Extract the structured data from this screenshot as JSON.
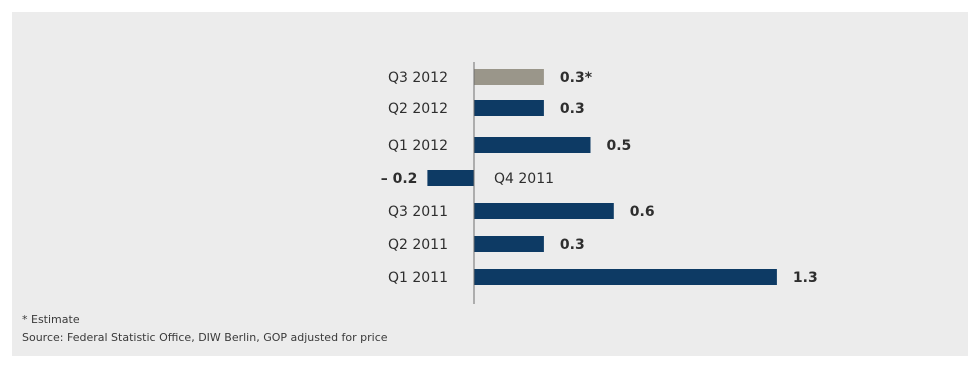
{
  "chart_data": {
    "type": "bar",
    "orientation": "horizontal",
    "categories": [
      "Q3 2012",
      "Q2 2012",
      "Q1 2012",
      "Q4 2011",
      "Q3 2011",
      "Q2 2011",
      "Q1 2011"
    ],
    "values": [
      0.3,
      0.3,
      0.5,
      -0.2,
      0.6,
      0.3,
      1.3
    ],
    "value_labels": [
      "0.3*",
      "0.3",
      "0.5",
      "– 0.2",
      "0.6",
      "0.3",
      "1.3"
    ],
    "bar_colors": [
      "#9a968a",
      "#0d3a64",
      "#0d3a64",
      "#0d3a64",
      "#0d3a64",
      "#0d3a64",
      "#0d3a64"
    ],
    "title": "",
    "xlabel": "",
    "ylabel": "",
    "grid": false,
    "legend": "none"
  },
  "footnotes": {
    "estimate": "* Estimate",
    "source": "Source: Federal Statistic Office, DIW Berlin, GOP adjusted for price"
  },
  "colors": {
    "background": "#ececec",
    "bar_primary": "#0d3a64",
    "bar_estimate": "#9a968a",
    "axis": "#6e6e6e"
  }
}
